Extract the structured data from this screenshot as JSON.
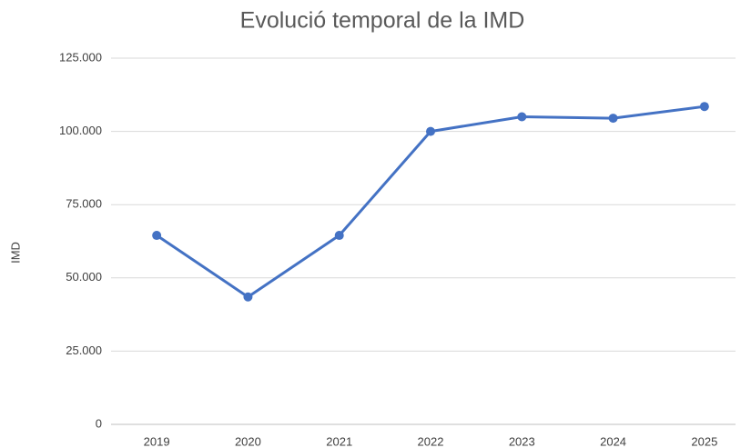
{
  "chart_data": {
    "type": "line",
    "title": "Evolució temporal de la IMD",
    "y_label": "IMD",
    "categories": [
      "2019",
      "2020",
      "2021",
      "2022",
      "2023",
      "2024",
      "2025"
    ],
    "series": [
      {
        "name": "IMD",
        "color": "#4472c4",
        "values": [
          64500,
          43500,
          64500,
          100000,
          105000,
          104500,
          108500
        ]
      }
    ],
    "ylim": [
      0,
      125000
    ],
    "yticks": [
      0,
      {
        "value": 25000,
        "label": "25.000"
      },
      {
        "value": 50000,
        "label": "50.000"
      },
      {
        "value": 75000,
        "label": "75.000"
      },
      {
        "value": 100000,
        "label": "100.000"
      },
      {
        "value": 125000,
        "label": "125.000"
      }
    ],
    "grid": true
  }
}
